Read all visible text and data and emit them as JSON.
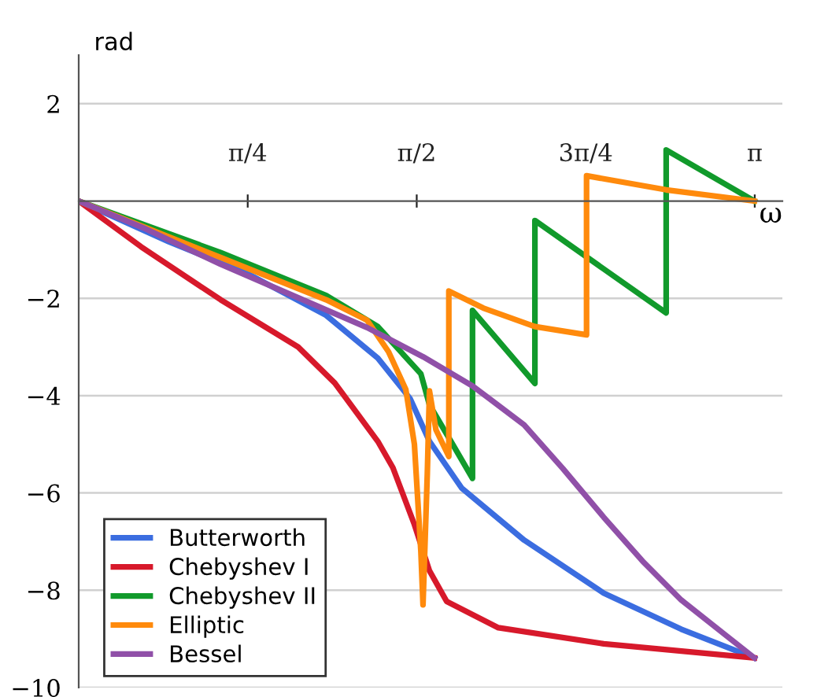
{
  "chart_data": {
    "type": "line",
    "xlabel": "ω",
    "ylabel": "rad",
    "xlim": [
      0,
      3.27
    ],
    "ylim": [
      -10,
      3
    ],
    "xticks": [
      {
        "value": 0.7854,
        "label": "π/4"
      },
      {
        "value": 1.5708,
        "label": "π/2"
      },
      {
        "value": 2.3562,
        "label": "3π/4"
      },
      {
        "value": 3.1416,
        "label": "π"
      }
    ],
    "yticks": [
      {
        "value": 2,
        "label": "2"
      },
      {
        "value": -2,
        "label": "−2"
      },
      {
        "value": -4,
        "label": "−4"
      },
      {
        "value": -6,
        "label": "−6"
      },
      {
        "value": -8,
        "label": "−8"
      },
      {
        "value": -10,
        "label": "−10"
      }
    ],
    "grid": "y",
    "legend": "bottom left",
    "marker": "none",
    "line_style": "solid",
    "series": [
      {
        "name": "Butterworth",
        "color": "#3b6de0",
        "x": [
          0,
          0.42,
          0.78,
          1.15,
          1.39,
          1.54,
          1.63,
          1.78,
          2.07,
          2.44,
          2.8,
          3.14
        ],
        "values": [
          0,
          -0.84,
          -1.48,
          -2.35,
          -3.23,
          -4.06,
          -4.94,
          -5.9,
          -6.97,
          -8.06,
          -8.8,
          -9.39
        ]
      },
      {
        "name": "Chebyshev I",
        "color": "#d7192b",
        "x": [
          0,
          0.29,
          0.66,
          1.02,
          1.19,
          1.39,
          1.46,
          1.56,
          1.63,
          1.71,
          1.95,
          2.44,
          3.14
        ],
        "values": [
          0,
          -0.94,
          -2.03,
          -3.0,
          -3.74,
          -4.94,
          -5.48,
          -6.65,
          -7.6,
          -8.23,
          -8.77,
          -9.1,
          -9.39
        ]
      },
      {
        "name": "Chebyshev II",
        "color": "#119a2b",
        "x": [
          0,
          0.66,
          1.15,
          1.39,
          1.59,
          1.63,
          1.73,
          1.83,
          1.83,
          2.12,
          2.12,
          2.73,
          2.73,
          3.14
        ],
        "values": [
          0,
          -1.06,
          -1.94,
          -2.58,
          -3.55,
          -4.19,
          -4.94,
          -5.7,
          -2.25,
          -3.75,
          -0.4,
          -2.3,
          1.05,
          0
        ]
      },
      {
        "name": "Elliptic",
        "color": "#ff8a0c",
        "x": [
          0,
          0.66,
          1.15,
          1.34,
          1.44,
          1.52,
          1.56,
          1.59,
          1.6,
          1.62,
          1.63,
          1.66,
          1.72,
          1.72,
          1.88,
          2.12,
          2.36,
          2.36,
          2.73,
          3.14
        ],
        "values": [
          0,
          -1.16,
          -2.03,
          -2.45,
          -3.1,
          -3.87,
          -5.0,
          -7.2,
          -8.3,
          -5.6,
          -3.9,
          -4.7,
          -5.25,
          -1.85,
          -2.2,
          -2.58,
          -2.75,
          0.52,
          0.23,
          0
        ]
      },
      {
        "name": "Bessel",
        "color": "#9050a8",
        "x": [
          0,
          0.3,
          0.66,
          1.0,
          1.34,
          1.6,
          1.83,
          2.07,
          2.25,
          2.44,
          2.62,
          2.8,
          3.0,
          3.14
        ],
        "values": [
          0,
          -0.55,
          -1.3,
          -1.95,
          -2.6,
          -3.2,
          -3.8,
          -4.6,
          -5.5,
          -6.5,
          -7.4,
          -8.2,
          -8.9,
          -9.39
        ]
      }
    ]
  }
}
